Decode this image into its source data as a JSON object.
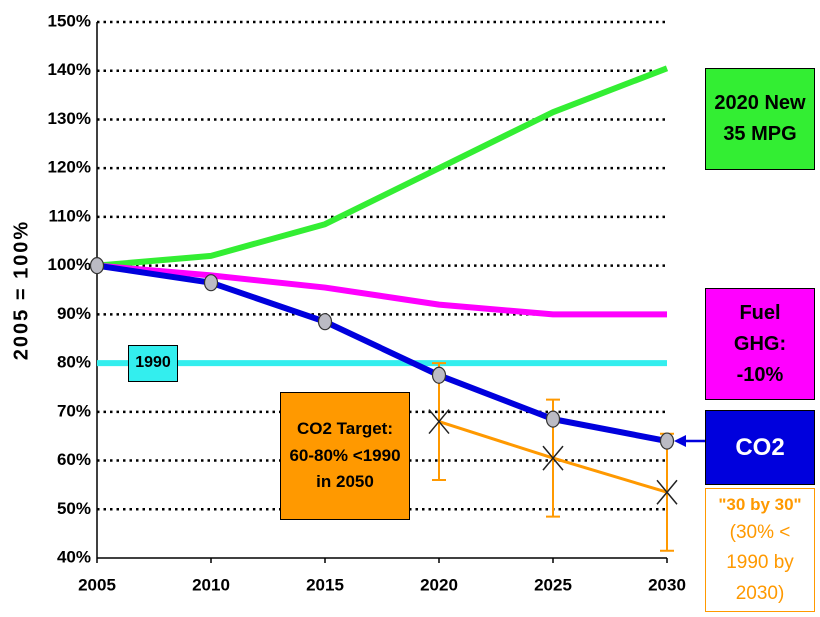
{
  "chart_data": {
    "type": "line",
    "y_label": "2005 = 100%",
    "x": [
      2005,
      2010,
      2015,
      2020,
      2025,
      2030
    ],
    "xlim": [
      2005,
      2030
    ],
    "xticks": [
      2005,
      2010,
      2015,
      2020,
      2025,
      2030
    ],
    "ylim": [
      40,
      150
    ],
    "yticks": [
      {
        "value": 40,
        "label": "40%"
      },
      {
        "value": 50,
        "label": "50%"
      },
      {
        "value": 60,
        "label": "60%"
      },
      {
        "value": 70,
        "label": "70%"
      },
      {
        "value": 80,
        "label": "80%"
      },
      {
        "value": 90,
        "label": "90%"
      },
      {
        "value": 100,
        "label": "100%"
      },
      {
        "value": 110,
        "label": "110%"
      },
      {
        "value": 120,
        "label": "120%"
      },
      {
        "value": 130,
        "label": "130%"
      },
      {
        "value": 140,
        "label": "140%"
      },
      {
        "value": 150,
        "label": "150%"
      }
    ],
    "grid": true,
    "series": [
      {
        "name": "2020 New 35 MPG",
        "color": "#33ee33",
        "values": [
          100,
          102,
          108.5,
          120,
          131.5,
          140.5
        ]
      },
      {
        "name": "Fuel GHG: -10%",
        "color": "#ff00ff",
        "values": [
          100,
          98,
          95.5,
          92,
          90,
          90
        ]
      },
      {
        "name": "1990",
        "color": "#33eeee",
        "values": [
          80,
          80,
          80,
          80,
          80,
          80
        ]
      },
      {
        "name": "\"30 by 30\"",
        "note": "(30% < 1990 by 2030)",
        "color": "#ff9900",
        "values": [
          null,
          null,
          null,
          68,
          60.5,
          53.5
        ],
        "errors": [
          null,
          null,
          null,
          12,
          12,
          12
        ],
        "marker": "x"
      },
      {
        "name": "CO2",
        "color": "#0000dd",
        "values": [
          100,
          96.5,
          88.5,
          77.5,
          68.5,
          64
        ],
        "marker": "circle"
      }
    ],
    "annotations": [
      {
        "lines": [
          "CO2 Target:",
          "60-80% <1990",
          "in 2050"
        ],
        "color": "#ff9900"
      }
    ]
  }
}
